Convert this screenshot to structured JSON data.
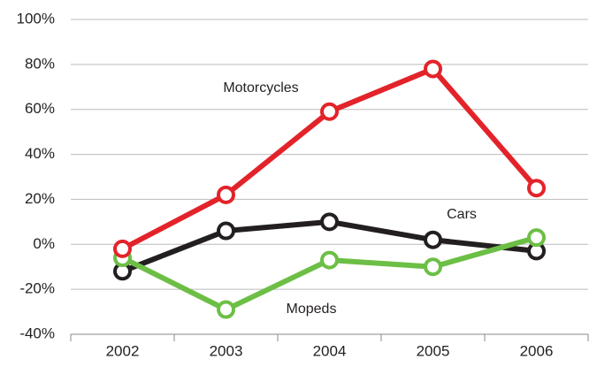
{
  "chart_data": {
    "type": "line",
    "categories": [
      "2002",
      "2003",
      "2004",
      "2005",
      "2006"
    ],
    "series": [
      {
        "name": "Cars",
        "color": "#231f20",
        "values": [
          -12,
          6,
          10,
          2,
          -3
        ]
      },
      {
        "name": "Mopeds",
        "color": "#6cbf45",
        "values": [
          -6,
          -29,
          -7,
          -10,
          3
        ]
      },
      {
        "name": "Motorcycles",
        "color": "#e3232a",
        "values": [
          -2,
          22,
          59,
          78,
          25
        ]
      }
    ],
    "ylim": [
      -40,
      100
    ],
    "yticks": [
      {
        "value": -40,
        "label": "-40%"
      },
      {
        "value": -20,
        "label": "-20%"
      },
      {
        "value": 0,
        "label": "0%"
      },
      {
        "value": 20,
        "label": "20%"
      },
      {
        "value": 40,
        "label": "40%"
      },
      {
        "value": 60,
        "label": "60%"
      },
      {
        "value": 80,
        "label": "80%"
      },
      {
        "value": 100,
        "label": "100%"
      }
    ],
    "grid": true
  }
}
